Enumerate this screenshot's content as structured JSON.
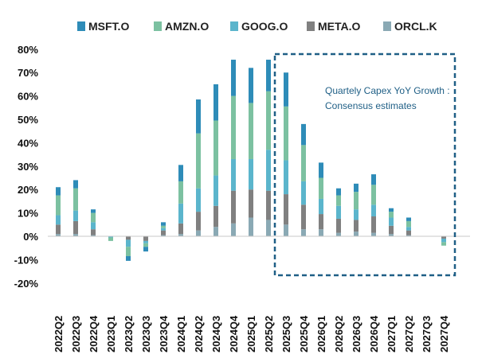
{
  "chart_data": {
    "type": "bar",
    "stacked": true,
    "title": "",
    "xlabel": "",
    "ylabel": "",
    "ylim": [
      -20,
      80
    ],
    "ytick_labels": [
      "80%",
      "70%",
      "60%",
      "50%",
      "40%",
      "30%",
      "20%",
      "10%",
      "0%",
      "-10%",
      "-20%"
    ],
    "ytick_values": [
      80,
      70,
      60,
      50,
      40,
      30,
      20,
      10,
      0,
      -10,
      -20
    ],
    "grid": false,
    "categories": [
      "2022Q2",
      "2022Q3",
      "2022Q4",
      "2023Q1",
      "2023Q2",
      "2023Q3",
      "2023Q4",
      "2024Q1",
      "2024Q2",
      "2024Q3",
      "2024Q4",
      "2025Q1",
      "2025Q2",
      "2025Q3",
      "2025Q4",
      "2026Q1",
      "2026Q2",
      "2026Q3",
      "2026Q4",
      "2027Q1",
      "2027Q2",
      "2027Q3",
      "2027Q4"
    ],
    "series": [
      {
        "name": "ORCL.K",
        "color": "#8aa9b4",
        "values": [
          1,
          1,
          0.5,
          0,
          0,
          0,
          0.5,
          1,
          2.5,
          4,
          5.5,
          8,
          7,
          5,
          3,
          3,
          1.5,
          2,
          1.5,
          1,
          0.5,
          0,
          0
        ]
      },
      {
        "name": "META.O",
        "color": "#808080",
        "values": [
          4,
          5.5,
          2.5,
          0,
          -1.5,
          -2,
          2,
          4.5,
          8,
          9,
          14,
          12,
          12.5,
          13,
          10.5,
          6.5,
          6,
          5,
          7,
          3.5,
          2,
          0,
          -1
        ]
      },
      {
        "name": "GOOG.O",
        "color": "#5bb5cc",
        "values": [
          4,
          4.5,
          3,
          -0.5,
          -3,
          -1,
          1,
          8.5,
          10,
          13,
          13.5,
          13,
          17.5,
          14.5,
          10,
          6.5,
          5.5,
          4.5,
          5,
          3.5,
          1.5,
          0,
          -1.5
        ]
      },
      {
        "name": "AMZN.O",
        "color": "#7cc1a1",
        "values": [
          8.5,
          9.5,
          4,
          -1.5,
          -4,
          -1.5,
          1,
          9.5,
          23.5,
          23.5,
          27,
          24,
          25,
          23,
          15.5,
          9,
          4.5,
          7.5,
          8.5,
          2.5,
          2.5,
          0,
          -1.5
        ]
      },
      {
        "name": "MSFT.O",
        "color": "#2e8cb8",
        "values": [
          3.5,
          3.5,
          1.5,
          0,
          -2,
          -2,
          1.5,
          7,
          14.5,
          15.5,
          15.5,
          15,
          13.5,
          14.5,
          9,
          6.5,
          3,
          3.5,
          4.5,
          1.5,
          1.5,
          0,
          0
        ]
      }
    ],
    "legend": {
      "placement": "top",
      "order": [
        "MSFT.O",
        "AMZN.O",
        "GOOG.O",
        "META.O",
        "ORCL.K"
      ]
    },
    "annotations": [
      {
        "text_lines": [
          "Quartely Capex YoY Growth :",
          "Consensus estimates"
        ],
        "start_category": "2025Q3",
        "end_category": "2027Q4",
        "style": "dashed-box"
      }
    ]
  }
}
